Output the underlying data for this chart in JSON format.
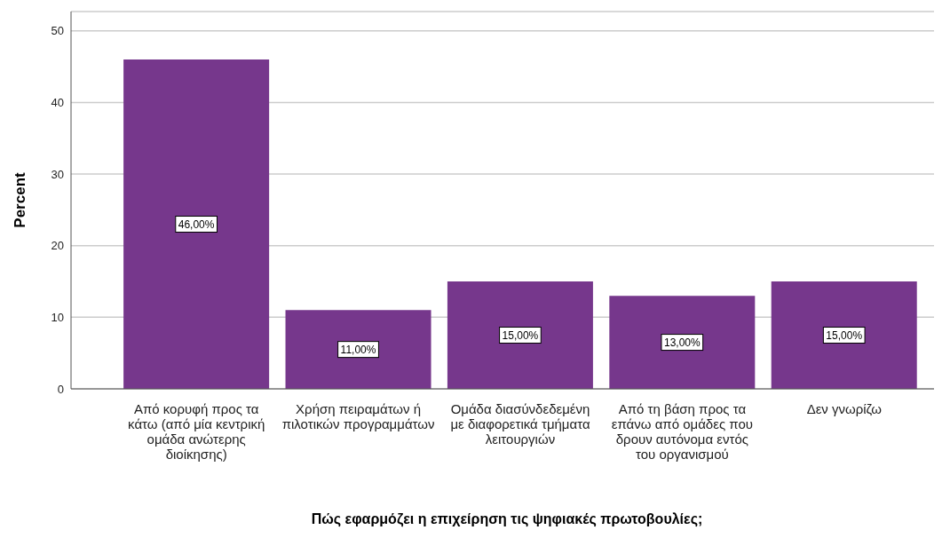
{
  "chart_data": {
    "type": "bar",
    "xlabel": "Πώς εφαρμόζει η επιχείρηση τις ψηφιακές πρωτοβουλίες;",
    "ylabel": "Percent",
    "categories": [
      "Από κορυφή προς τα κάτω (από μία κεντρική ομάδα ανώτερης διοίκησης)",
      "Χρήση πειραμάτων ή πιλοτικών προγραμμάτων",
      "Ομάδα διασύνδεδεμένη με διαφορετικά τμήματα λειτουργιών",
      "Από τη βάση προς τα επάνω από ομάδες που δρουν αυτόνομα εντός του οργανισμού",
      "Δεν γνωρίζω"
    ],
    "values": [
      46,
      11,
      15,
      13,
      15
    ],
    "value_labels": [
      "46,00%",
      "11,00%",
      "15,00%",
      "13,00%",
      "15,00%"
    ],
    "color": "#76378c",
    "ylim": [
      0,
      52.7
    ],
    "yticks": [
      0,
      10,
      20,
      30,
      40,
      50
    ],
    "grid": "y"
  }
}
